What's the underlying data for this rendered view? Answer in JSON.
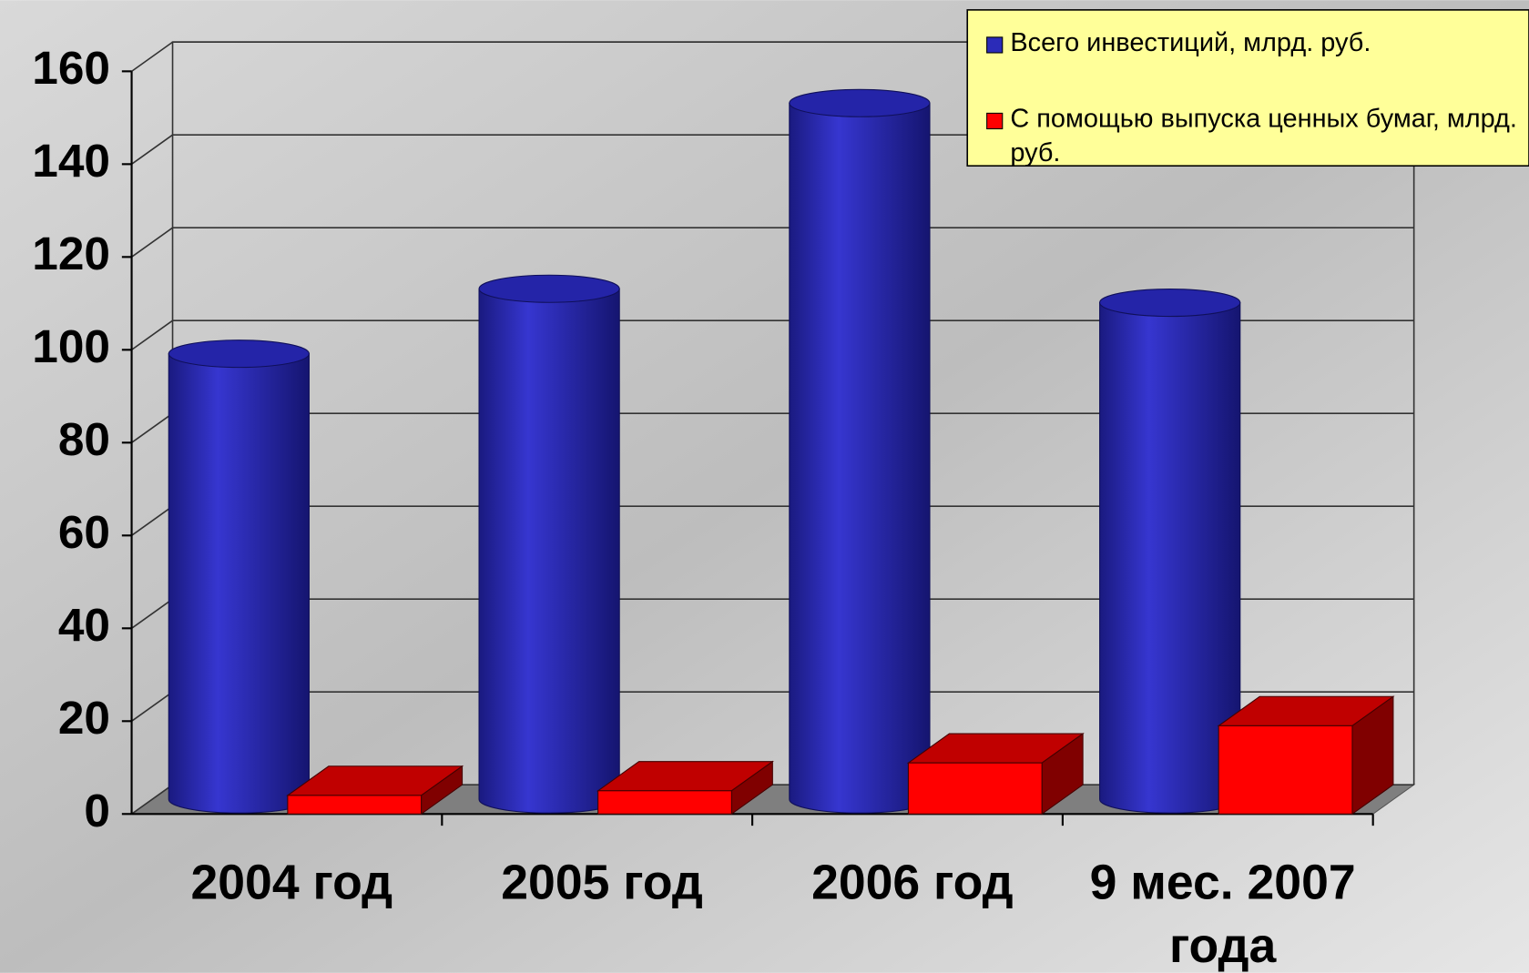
{
  "chart_data": {
    "type": "bar3d",
    "categories": [
      "2004 год",
      "2005 год",
      "2006 год",
      "9 мес. 2007 года"
    ],
    "series": [
      {
        "name": "Всего инвестиций, млрд. руб.",
        "color": "#2b2bb8",
        "values": [
          96,
          110,
          150,
          107
        ]
      },
      {
        "name": "С помощью выпуска ценных бумаг, млрд. руб.",
        "color": "#ff0000",
        "values": [
          4,
          5,
          11,
          19
        ]
      }
    ],
    "ylim": [
      0,
      160
    ],
    "yticks": [
      0,
      20,
      40,
      60,
      80,
      100,
      120,
      140,
      160
    ],
    "grid": true,
    "legend": "top-right"
  }
}
